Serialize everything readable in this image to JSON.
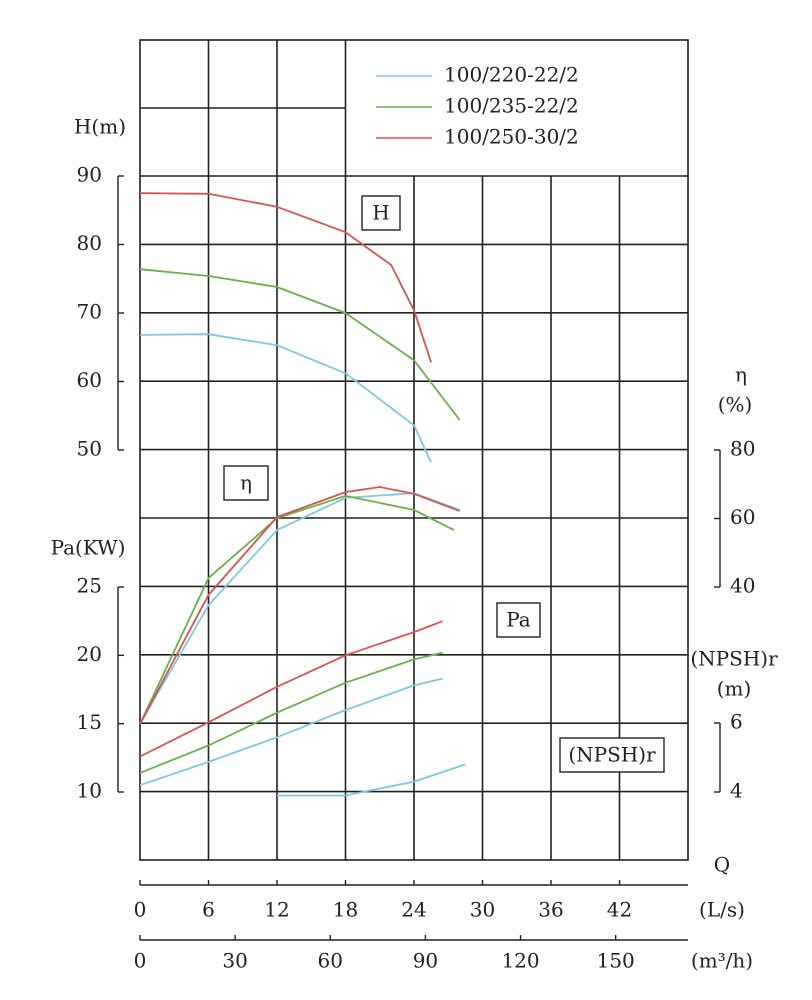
{
  "chart_data": {
    "type": "line",
    "x_label": "Q",
    "xlim": [
      0,
      48
    ],
    "xticks": [
      0,
      6,
      12,
      18,
      24,
      30,
      36,
      42
    ],
    "x_unit": "(L/s)",
    "x2lim": [
      0,
      172.8
    ],
    "x2ticks": [
      0,
      30,
      60,
      90,
      120,
      150
    ],
    "x2_unit": "(m³/h)",
    "grid": true,
    "axes": {
      "H": {
        "label": "H(m)",
        "tag": "H",
        "ylim": [
          50,
          90
        ],
        "yticks": [
          50,
          60,
          70,
          80,
          90
        ],
        "side": "left"
      },
      "eta": {
        "label": "η",
        "unit": "(%)",
        "tag": "η",
        "ylim": [
          40,
          80
        ],
        "yticks": [
          40,
          60,
          80
        ],
        "side": "right"
      },
      "Pa": {
        "label": "Pa(KW)",
        "tag": "Pa",
        "ylim": [
          10,
          25
        ],
        "yticks": [
          10,
          15,
          20,
          25
        ],
        "side": "left"
      },
      "NPSH": {
        "label": "(NPSH)r",
        "unit": "(m)",
        "tag": "(NPSH)r",
        "ylim": [
          4,
          6
        ],
        "yticks": [
          4,
          6
        ],
        "side": "right"
      }
    },
    "series": [
      {
        "name": "100/220-22/2",
        "color": "#7ec8e3",
        "curves": {
          "H": {
            "x": [
              0,
              6,
              12,
              18,
              24,
              25.5
            ],
            "values": [
              66.8,
              66.9,
              65.3,
              61.2,
              53.6,
              48.2
            ]
          },
          "eta": {
            "x": [
              0,
              6,
              12,
              18,
              24,
              28
            ],
            "values": [
              0,
              34.7,
              56.6,
              66,
              67.4,
              62.5
            ]
          },
          "Pa": {
            "x": [
              0,
              6,
              12,
              18,
              24,
              26.5
            ],
            "values": [
              10.5,
              12.2,
              14,
              16,
              17.8,
              18.3
            ]
          },
          "NPSH": {
            "x": [
              12,
              18,
              24,
              28.5
            ],
            "values": [
              3.9,
              3.9,
              4.3,
              4.8
            ]
          }
        }
      },
      {
        "name": "100/235-22/2",
        "color": "#6ab04c",
        "curves": {
          "H": {
            "x": [
              0,
              6,
              12,
              18,
              24,
              28
            ],
            "values": [
              76.4,
              75.4,
              73.8,
              70,
              63.1,
              54.4
            ]
          },
          "eta": {
            "x": [
              0,
              6,
              12,
              18,
              24,
              27.5
            ],
            "values": [
              0,
              42.6,
              60.1,
              66.6,
              62.5,
              56.6
            ]
          },
          "Pa": {
            "x": [
              0,
              6,
              12,
              18,
              24,
              26.5
            ],
            "values": [
              11.4,
              13.4,
              15.8,
              18,
              19.7,
              20.2
            ]
          }
        }
      },
      {
        "name": "100/250-30/2",
        "color": "#d9534f",
        "curves": {
          "H": {
            "x": [
              0,
              6,
              12,
              18,
              22,
              24,
              25.5
            ],
            "values": [
              87.5,
              87.4,
              85.5,
              81.8,
              77,
              70.4,
              62.8
            ]
          },
          "eta": {
            "x": [
              0,
              6,
              12,
              18,
              21,
              24,
              28
            ],
            "values": [
              0,
              37.7,
              60.4,
              67.7,
              69.2,
              67.2,
              62.2
            ]
          },
          "Pa": {
            "x": [
              0,
              6,
              12,
              18,
              24,
              26.5
            ],
            "values": [
              12.6,
              15.1,
              17.7,
              20,
              21.7,
              22.5
            ]
          }
        }
      }
    ]
  }
}
